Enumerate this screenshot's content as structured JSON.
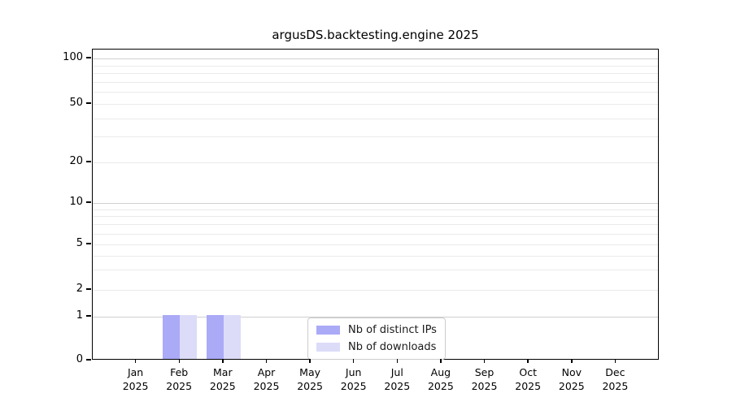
{
  "figure": {
    "title": "argusDS.backtesting.engine 2025"
  },
  "legend": {
    "items": [
      {
        "label": "Nb of distinct IPs",
        "color": "#aaaaf7"
      },
      {
        "label": "Nb of downloads",
        "color": "#dcdcf8"
      }
    ]
  },
  "chart_data": {
    "type": "bar",
    "title": "argusDS.backtesting.engine 2025",
    "categories": [
      "Jan 2025",
      "Feb 2025",
      "Mar 2025",
      "Apr 2025",
      "May 2025",
      "Jun 2025",
      "Jul 2025",
      "Aug 2025",
      "Sep 2025",
      "Oct 2025",
      "Nov 2025",
      "Dec 2025"
    ],
    "series": [
      {
        "name": "Nb of distinct IPs",
        "color": "#aaaaf7",
        "values": [
          0,
          1,
          1,
          0,
          0,
          0,
          0,
          0,
          0,
          0,
          0,
          0
        ]
      },
      {
        "name": "Nb of downloads",
        "color": "#dcdcf8",
        "values": [
          0,
          1,
          1,
          0,
          0,
          0,
          0,
          0,
          0,
          0,
          0,
          0
        ]
      }
    ],
    "xlabel": "",
    "ylabel": "",
    "yscale": "symlog",
    "yticks": [
      0,
      1,
      2,
      5,
      10,
      20,
      50,
      100
    ],
    "ylim": [
      0,
      110
    ],
    "grid": true,
    "legend_position": "lower center"
  }
}
